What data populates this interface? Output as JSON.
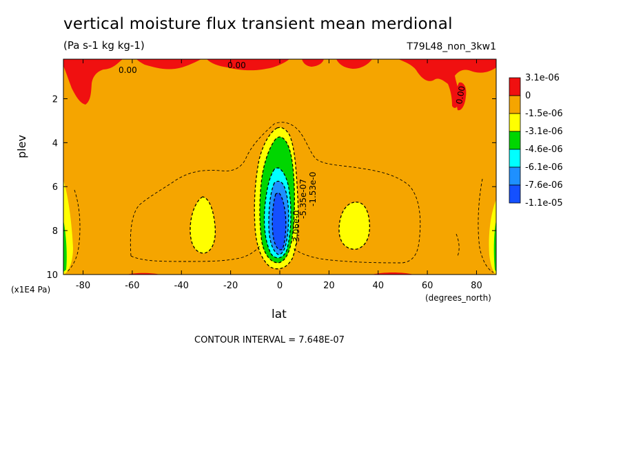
{
  "chart_data": {
    "type": "heatmap",
    "title": "vertical moisture flux transient mean merdional",
    "units": "(Pa s-1 kg kg-1)",
    "dataset": "T79L48_non_3kw1",
    "xlabel": "lat",
    "xunits": "(degrees_north)",
    "ylabel": "plev",
    "yunits": "(x1E4 Pa)",
    "xlim": [
      -88,
      88
    ],
    "ylim": [
      10,
      0.2
    ],
    "x_ticks": [
      -80,
      -60,
      -40,
      -20,
      0,
      20,
      40,
      60,
      80
    ],
    "y_ticks": [
      2,
      4,
      6,
      8,
      10
    ],
    "contour_interval_text": "CONTOUR INTERVAL = 7.648E-07",
    "legend": {
      "placement": "right",
      "levels": [
        "3.1e-06",
        "0",
        "-1.5e-06",
        "-3.1e-06",
        "-4.6e-06",
        "-6.1e-06",
        "-7.6e-06",
        "-1.1e-05"
      ],
      "colors": [
        "#f01010",
        "#f5a500",
        "#ffff00",
        "#00d600",
        "#00ffff",
        "#1e90ff",
        "#1450ff"
      ]
    },
    "contour_labels": [
      "0.00",
      "0.00",
      "0.00",
      "-1.53e-0",
      "-5.35e-07",
      "-3.06e-0"
    ],
    "background_color": "#f5a500"
  }
}
